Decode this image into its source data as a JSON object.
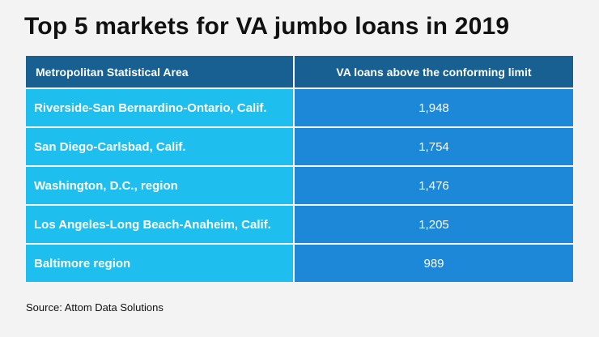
{
  "title": "Top 5 markets for VA jumbo loans in 2019",
  "chart_data": {
    "type": "table",
    "columns": [
      "Metropolitan Statistical Area",
      "VA loans above the conforming limit"
    ],
    "rows": [
      {
        "area": "Riverside-San Bernardino-Ontario, Calif.",
        "value": "1,948"
      },
      {
        "area": "San Diego-Carlsbad, Calif.",
        "value": "1,754"
      },
      {
        "area": "Washington, D.C., region",
        "value": "1,476"
      },
      {
        "area": "Los Angeles-Long Beach-Anaheim, Calif.",
        "value": "1,205"
      },
      {
        "area": "Baltimore region",
        "value": "989"
      }
    ],
    "values": [
      1948,
      1754,
      1476,
      1205,
      989
    ]
  },
  "source": "Source: Attom Data Solutions",
  "colors": {
    "background": "#f3f3f3",
    "header": "#185f92",
    "left_column": "#1ebfee",
    "right_column": "#1d87d8",
    "text": "#111111"
  }
}
